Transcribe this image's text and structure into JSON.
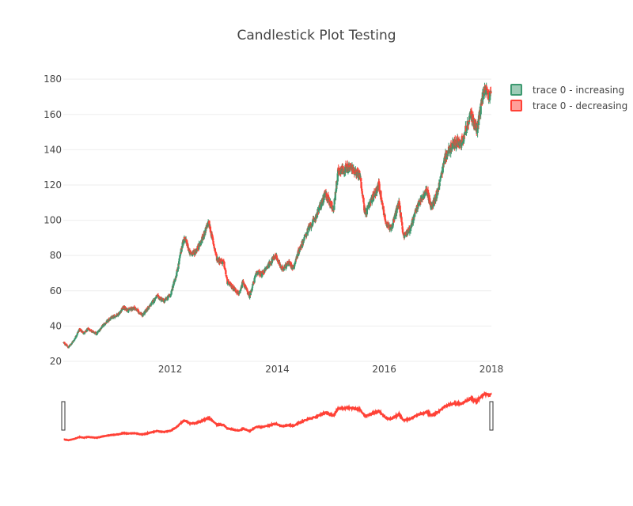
{
  "chart_data": {
    "type": "candlestick",
    "title": "Candlestick Plot Testing",
    "xlabel": "",
    "ylabel": "",
    "x_range": [
      "2010-01-01",
      "2018-01-01"
    ],
    "ylim": [
      20,
      185
    ],
    "y_ticks": [
      20,
      40,
      60,
      80,
      100,
      120,
      140,
      160,
      180
    ],
    "x_ticks": [
      {
        "date": "2012-01-01",
        "label": "2012"
      },
      {
        "date": "2014-01-01",
        "label": "2014"
      },
      {
        "date": "2016-01-01",
        "label": "2016"
      },
      {
        "date": "2018-01-01",
        "label": "2018"
      }
    ],
    "grid": true,
    "legend_position": "top-right",
    "rangeslider": true,
    "series": [
      {
        "name": "trace 0 - increasing",
        "color": "#3D9970"
      },
      {
        "name": "trace 0 - decreasing",
        "color": "#FF4136"
      }
    ],
    "close_anchors": [
      [
        "2010-01-04",
        30.6
      ],
      [
        "2010-02-05",
        28.0
      ],
      [
        "2010-03-15",
        32.0
      ],
      [
        "2010-04-20",
        38.0
      ],
      [
        "2010-05-25",
        36.0
      ],
      [
        "2010-06-20",
        38.5
      ],
      [
        "2010-08-15",
        35.5
      ],
      [
        "2010-09-25",
        40.0
      ],
      [
        "2010-11-15",
        44.0
      ],
      [
        "2011-01-15",
        47.0
      ],
      [
        "2011-02-15",
        50.5
      ],
      [
        "2011-03-20",
        49.0
      ],
      [
        "2011-05-01",
        50.5
      ],
      [
        "2011-06-25",
        46.0
      ],
      [
        "2011-08-01",
        50.0
      ],
      [
        "2011-08-20",
        52.0
      ],
      [
        "2011-10-01",
        57.0
      ],
      [
        "2011-11-20",
        54.0
      ],
      [
        "2012-01-05",
        58.0
      ],
      [
        "2012-02-20",
        72.0
      ],
      [
        "2012-03-25",
        87.0
      ],
      [
        "2012-04-10",
        90.0
      ],
      [
        "2012-05-15",
        81.0
      ],
      [
        "2012-06-20",
        82.0
      ],
      [
        "2012-08-01",
        88.0
      ],
      [
        "2012-09-19",
        99.0
      ],
      [
        "2012-11-15",
        78.0
      ],
      [
        "2012-12-31",
        76.0
      ],
      [
        "2013-01-25",
        65.0
      ],
      [
        "2013-04-19",
        58.0
      ],
      [
        "2013-05-10",
        65.0
      ],
      [
        "2013-06-25",
        57.0
      ],
      [
        "2013-08-15",
        71.0
      ],
      [
        "2013-09-15",
        69.0
      ],
      [
        "2013-11-05",
        75.0
      ],
      [
        "2013-12-20",
        80.0
      ],
      [
        "2014-02-01",
        72.0
      ],
      [
        "2014-03-20",
        76.0
      ],
      [
        "2014-04-20",
        73.0
      ],
      [
        "2014-05-25",
        82.0
      ],
      [
        "2014-08-01",
        95.0
      ],
      [
        "2014-09-10",
        100.0
      ],
      [
        "2014-11-25",
        115.0
      ],
      [
        "2015-01-20",
        106.0
      ],
      [
        "2015-02-20",
        128.0
      ],
      [
        "2015-05-20",
        130.0
      ],
      [
        "2015-07-20",
        125.0
      ],
      [
        "2015-08-24",
        103.0
      ],
      [
        "2015-10-15",
        113.0
      ],
      [
        "2015-11-25",
        120.0
      ],
      [
        "2016-01-15",
        97.0
      ],
      [
        "2016-02-20",
        96.0
      ],
      [
        "2016-04-10",
        110.0
      ],
      [
        "2016-05-12",
        91.0
      ],
      [
        "2016-06-25",
        95.0
      ],
      [
        "2016-08-15",
        108.0
      ],
      [
        "2016-10-20",
        117.0
      ],
      [
        "2016-11-15",
        107.0
      ],
      [
        "2016-12-30",
        116.0
      ],
      [
        "2017-02-20",
        136.0
      ],
      [
        "2017-04-15",
        143.0
      ],
      [
        "2017-06-15",
        145.0
      ],
      [
        "2017-08-15",
        160.0
      ],
      [
        "2017-09-25",
        151.0
      ],
      [
        "2017-11-10",
        174.0
      ],
      [
        "2017-12-20",
        170.0
      ],
      [
        "2017-12-29",
        170.5
      ]
    ]
  }
}
